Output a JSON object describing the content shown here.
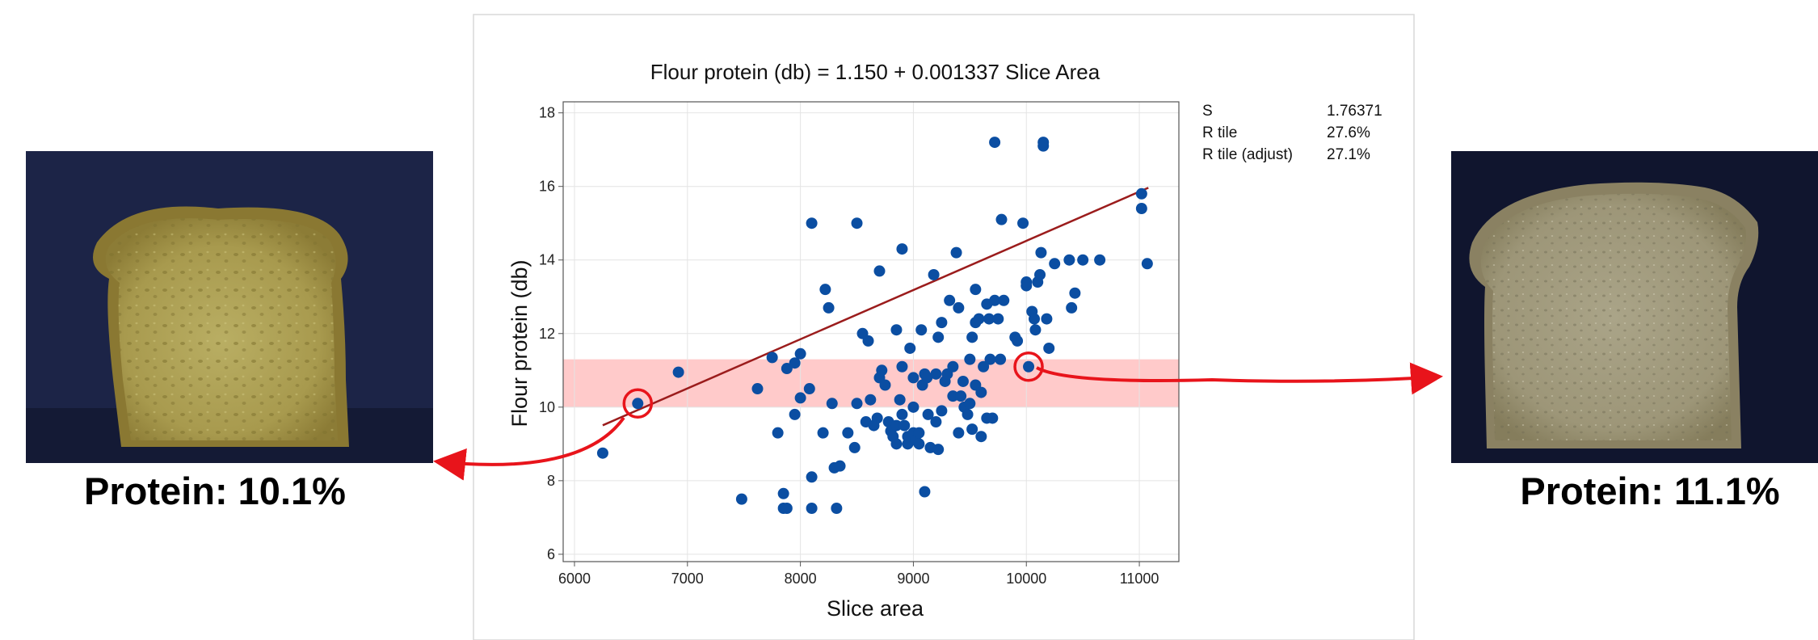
{
  "left_panel": {
    "caption": "Protein: 10.1%",
    "image_subject": "bread-slice-darker-crumb"
  },
  "right_panel": {
    "caption": "Protein: 11.1%",
    "image_subject": "bread-slice-lighter-crumb"
  },
  "colors": {
    "point": "#0b4ea2",
    "fit_line": "#9b1c1c",
    "band": "#ffb3b3",
    "highlight": "#e8141b",
    "frame": "#cfcfcf",
    "grid": "#e4e4e4"
  },
  "chart_data": {
    "type": "scatter",
    "title": "Flour protein (db) = 1.150 + 0.001337 Slice Area",
    "xlabel": "Slice area",
    "ylabel": "Flour protein (db)",
    "xlim": [
      5900,
      11350
    ],
    "ylim": [
      5.8,
      18.3
    ],
    "xticks": [
      6000,
      7000,
      8000,
      9000,
      10000,
      11000
    ],
    "yticks": [
      6,
      8,
      10,
      12,
      14,
      16,
      18
    ],
    "grid": true,
    "fit": {
      "intercept": 1.15,
      "slope": 0.001337,
      "x_range": [
        6250,
        11080
      ]
    },
    "band": {
      "y_range": [
        10.0,
        11.3
      ]
    },
    "stats": [
      {
        "label": "S",
        "value": "1.76371"
      },
      {
        "label": "R tile",
        "value": "27.6%"
      },
      {
        "label": "R tile (adjust)",
        "value": "27.1%"
      }
    ],
    "highlighted": [
      {
        "x": 6560,
        "y": 10.1,
        "caption_ref": "left_panel"
      },
      {
        "x": 10020,
        "y": 11.1,
        "caption_ref": "right_panel"
      }
    ],
    "points": [
      [
        6250,
        8.75
      ],
      [
        6560,
        10.1
      ],
      [
        6920,
        10.95
      ],
      [
        7480,
        7.5
      ],
      [
        7620,
        10.5
      ],
      [
        7750,
        11.35
      ],
      [
        7800,
        9.3
      ],
      [
        7850,
        7.65
      ],
      [
        7850,
        7.25
      ],
      [
        7880,
        7.25
      ],
      [
        7880,
        11.05
      ],
      [
        7950,
        11.2
      ],
      [
        7950,
        9.8
      ],
      [
        8000,
        10.25
      ],
      [
        8000,
        11.45
      ],
      [
        8080,
        10.5
      ],
      [
        8100,
        7.25
      ],
      [
        8100,
        8.1
      ],
      [
        8100,
        15.0
      ],
      [
        8200,
        9.3
      ],
      [
        8220,
        13.2
      ],
      [
        8250,
        12.7
      ],
      [
        8280,
        10.1
      ],
      [
        8300,
        8.35
      ],
      [
        8320,
        7.25
      ],
      [
        8350,
        8.4
      ],
      [
        8420,
        9.3
      ],
      [
        8480,
        8.9
      ],
      [
        8500,
        15.0
      ],
      [
        8500,
        10.1
      ],
      [
        8550,
        12.0
      ],
      [
        8580,
        9.6
      ],
      [
        8600,
        11.8
      ],
      [
        8620,
        10.2
      ],
      [
        8650,
        9.5
      ],
      [
        8680,
        9.7
      ],
      [
        8700,
        13.7
      ],
      [
        8700,
        10.8
      ],
      [
        8720,
        11.0
      ],
      [
        8750,
        10.6
      ],
      [
        8780,
        9.6
      ],
      [
        8800,
        9.35
      ],
      [
        8820,
        9.2
      ],
      [
        8850,
        12.1
      ],
      [
        8850,
        9.5
      ],
      [
        8850,
        9.0
      ],
      [
        8880,
        10.2
      ],
      [
        8900,
        14.3
      ],
      [
        8900,
        11.1
      ],
      [
        8900,
        9.8
      ],
      [
        8920,
        9.5
      ],
      [
        8950,
        9.0
      ],
      [
        8950,
        9.2
      ],
      [
        8970,
        11.6
      ],
      [
        9000,
        9.3
      ],
      [
        9000,
        10.8
      ],
      [
        9000,
        10.0
      ],
      [
        9020,
        9.1
      ],
      [
        9050,
        9.3
      ],
      [
        9050,
        9.0
      ],
      [
        9070,
        12.1
      ],
      [
        9080,
        10.6
      ],
      [
        9100,
        10.9
      ],
      [
        9100,
        7.7
      ],
      [
        9120,
        10.8
      ],
      [
        9130,
        9.8
      ],
      [
        9150,
        8.9
      ],
      [
        9180,
        13.6
      ],
      [
        9200,
        10.9
      ],
      [
        9200,
        9.6
      ],
      [
        9220,
        11.9
      ],
      [
        9220,
        8.85
      ],
      [
        9250,
        9.9
      ],
      [
        9250,
        12.3
      ],
      [
        9280,
        10.7
      ],
      [
        9300,
        10.9
      ],
      [
        9320,
        12.9
      ],
      [
        9350,
        11.1
      ],
      [
        9350,
        10.3
      ],
      [
        9380,
        14.2
      ],
      [
        9400,
        12.7
      ],
      [
        9400,
        9.3
      ],
      [
        9420,
        10.3
      ],
      [
        9440,
        10.7
      ],
      [
        9450,
        10.0
      ],
      [
        9480,
        9.8
      ],
      [
        9500,
        10.1
      ],
      [
        9500,
        11.3
      ],
      [
        9520,
        11.9
      ],
      [
        9520,
        9.4
      ],
      [
        9550,
        12.3
      ],
      [
        9550,
        10.6
      ],
      [
        9550,
        13.2
      ],
      [
        9580,
        12.4
      ],
      [
        9600,
        10.4
      ],
      [
        9600,
        9.2
      ],
      [
        9620,
        11.1
      ],
      [
        9650,
        12.8
      ],
      [
        9650,
        9.7
      ],
      [
        9670,
        12.4
      ],
      [
        9680,
        11.3
      ],
      [
        9700,
        9.7
      ],
      [
        9720,
        17.2
      ],
      [
        9720,
        12.9
      ],
      [
        9750,
        12.4
      ],
      [
        9770,
        11.3
      ],
      [
        9780,
        15.1
      ],
      [
        9800,
        12.9
      ],
      [
        9900,
        11.9
      ],
      [
        9920,
        11.8
      ],
      [
        9970,
        15.0
      ],
      [
        10000,
        13.3
      ],
      [
        10000,
        13.4
      ],
      [
        10020,
        11.1
      ],
      [
        10050,
        12.6
      ],
      [
        10070,
        12.4
      ],
      [
        10080,
        12.1
      ],
      [
        10100,
        13.4
      ],
      [
        10120,
        13.6
      ],
      [
        10130,
        14.2
      ],
      [
        10150,
        17.1
      ],
      [
        10150,
        17.2
      ],
      [
        10180,
        12.4
      ],
      [
        10200,
        11.6
      ],
      [
        10250,
        13.9
      ],
      [
        10380,
        14.0
      ],
      [
        10400,
        12.7
      ],
      [
        10430,
        13.1
      ],
      [
        10500,
        14.0
      ],
      [
        10650,
        14.0
      ],
      [
        11020,
        15.8
      ],
      [
        11020,
        15.4
      ],
      [
        11070,
        13.9
      ]
    ]
  }
}
